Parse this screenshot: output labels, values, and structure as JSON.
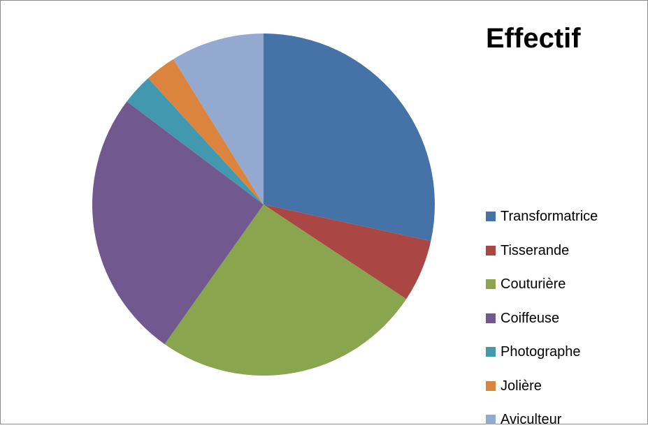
{
  "chart_data": {
    "type": "pie",
    "title": "Effectif",
    "legend_position": "right",
    "categories": [
      "Transformatrice",
      "Tisserande",
      "Couturière",
      "Coiffeuse",
      "Photographe",
      "Jolière",
      "Aviculteur"
    ],
    "values": [
      29,
      6,
      26,
      26,
      3,
      3,
      9
    ],
    "colors": [
      "#4572A7",
      "#AA4643",
      "#89A54E",
      "#71588F",
      "#4198AF",
      "#DB843D",
      "#93A9CF"
    ]
  }
}
